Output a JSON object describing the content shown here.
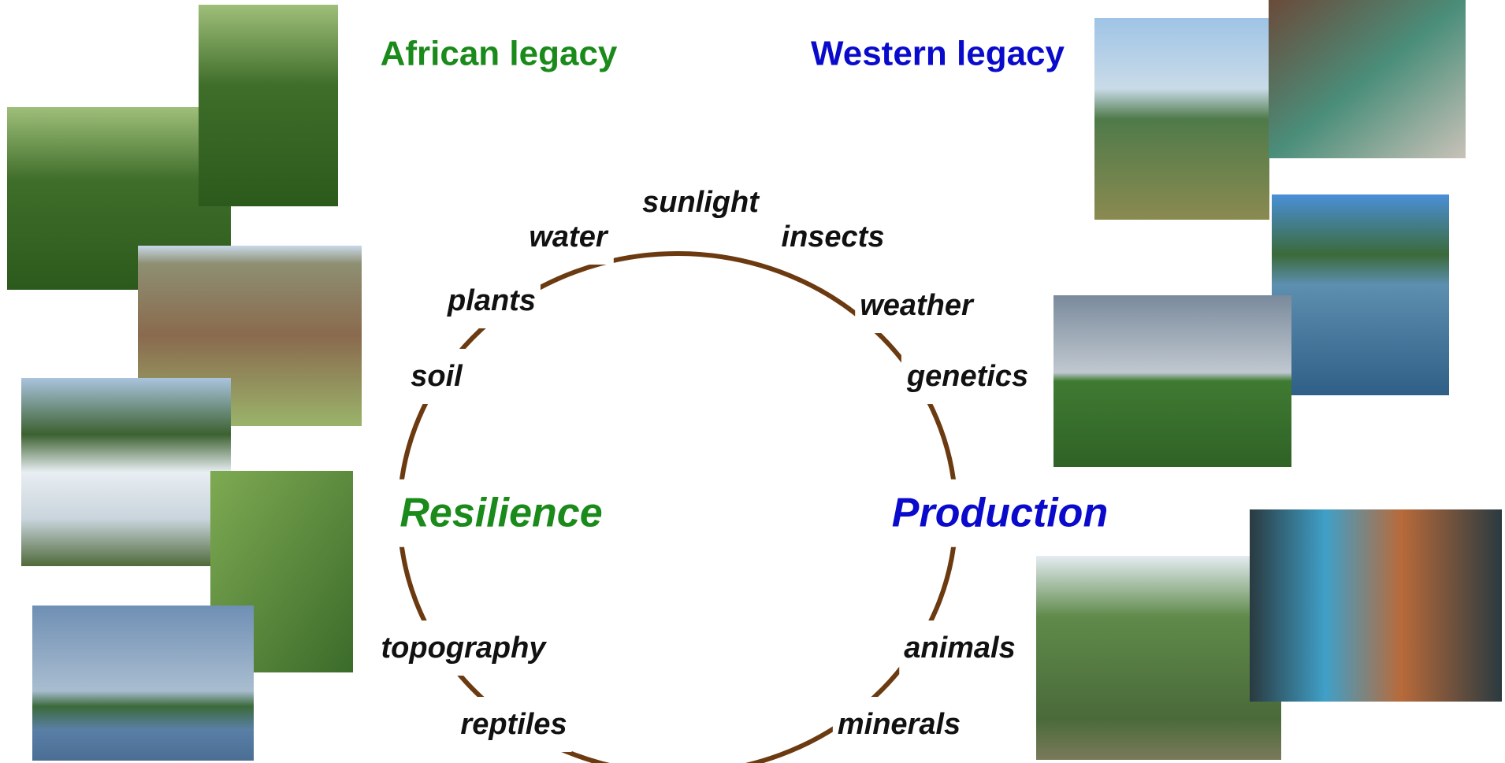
{
  "headings": {
    "left": "African legacy",
    "right": "Western legacy"
  },
  "centers": {
    "left": "Resilience",
    "right": "Production"
  },
  "ring_labels": [
    "sunlight",
    "water",
    "insects",
    "plants",
    "weather",
    "soil",
    "genetics",
    "topography",
    "animals",
    "reptiles",
    "minerals"
  ]
}
